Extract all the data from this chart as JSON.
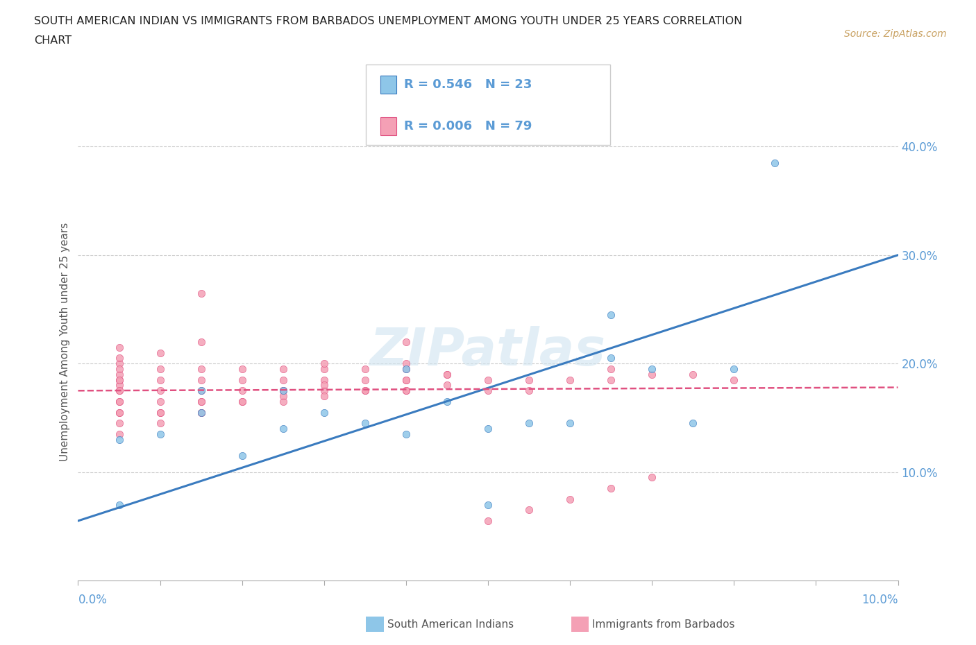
{
  "title_line1": "SOUTH AMERICAN INDIAN VS IMMIGRANTS FROM BARBADOS UNEMPLOYMENT AMONG YOUTH UNDER 25 YEARS CORRELATION",
  "title_line2": "CHART",
  "source_text": "Source: ZipAtlas.com",
  "ylabel": "Unemployment Among Youth under 25 years",
  "xlim": [
    0.0,
    0.1
  ],
  "ylim": [
    0.0,
    0.44
  ],
  "ytick_vals": [
    0.1,
    0.2,
    0.3,
    0.4
  ],
  "ytick_labels": [
    "10.0%",
    "20.0%",
    "30.0%",
    "40.0%"
  ],
  "legend_line1": "R = 0.546   N = 23",
  "legend_line2": "R = 0.006   N = 79",
  "color_blue": "#8ec6e8",
  "color_pink": "#f4a0b5",
  "color_blue_dark": "#3a7bbf",
  "color_pink_dark": "#e05080",
  "color_text": "#555555",
  "color_blue_label": "#5b9bd5",
  "color_source": "#c8a060",
  "watermark": "ZIPatlas",
  "blue_line_x": [
    0.0,
    0.1
  ],
  "blue_line_y": [
    0.055,
    0.3
  ],
  "pink_line_x": [
    0.0,
    0.1
  ],
  "pink_line_y": [
    0.175,
    0.178
  ],
  "blue_x": [
    0.005,
    0.01,
    0.015,
    0.015,
    0.02,
    0.025,
    0.03,
    0.035,
    0.04,
    0.045,
    0.05,
    0.055,
    0.06,
    0.065,
    0.07,
    0.075,
    0.08,
    0.085,
    0.05,
    0.005,
    0.025,
    0.04,
    0.065
  ],
  "blue_y": [
    0.13,
    0.135,
    0.155,
    0.175,
    0.115,
    0.14,
    0.155,
    0.145,
    0.135,
    0.165,
    0.14,
    0.145,
    0.145,
    0.245,
    0.195,
    0.145,
    0.195,
    0.385,
    0.07,
    0.07,
    0.175,
    0.195,
    0.205
  ],
  "pink_x": [
    0.005,
    0.005,
    0.005,
    0.005,
    0.005,
    0.005,
    0.005,
    0.005,
    0.01,
    0.01,
    0.01,
    0.01,
    0.01,
    0.01,
    0.015,
    0.015,
    0.015,
    0.015,
    0.015,
    0.015,
    0.015,
    0.02,
    0.02,
    0.02,
    0.02,
    0.025,
    0.025,
    0.025,
    0.025,
    0.03,
    0.03,
    0.03,
    0.03,
    0.035,
    0.035,
    0.035,
    0.04,
    0.04,
    0.04,
    0.04,
    0.04,
    0.045,
    0.045,
    0.05,
    0.05,
    0.055,
    0.055,
    0.06,
    0.065,
    0.065,
    0.07,
    0.075,
    0.08,
    0.025,
    0.03,
    0.04,
    0.045,
    0.005,
    0.005,
    0.005,
    0.005,
    0.005,
    0.005,
    0.005,
    0.005,
    0.01,
    0.01,
    0.015,
    0.015,
    0.02,
    0.025,
    0.03,
    0.035,
    0.04,
    0.05,
    0.055,
    0.06,
    0.065,
    0.07
  ],
  "pink_y": [
    0.155,
    0.165,
    0.175,
    0.18,
    0.185,
    0.19,
    0.2,
    0.215,
    0.155,
    0.165,
    0.175,
    0.185,
    0.195,
    0.21,
    0.155,
    0.165,
    0.175,
    0.185,
    0.195,
    0.22,
    0.265,
    0.165,
    0.175,
    0.185,
    0.195,
    0.165,
    0.175,
    0.185,
    0.195,
    0.175,
    0.185,
    0.195,
    0.2,
    0.175,
    0.185,
    0.195,
    0.175,
    0.185,
    0.195,
    0.2,
    0.22,
    0.18,
    0.19,
    0.175,
    0.185,
    0.175,
    0.185,
    0.185,
    0.185,
    0.195,
    0.19,
    0.19,
    0.185,
    0.175,
    0.18,
    0.185,
    0.19,
    0.135,
    0.145,
    0.155,
    0.165,
    0.175,
    0.185,
    0.195,
    0.205,
    0.145,
    0.155,
    0.155,
    0.165,
    0.165,
    0.17,
    0.17,
    0.175,
    0.175,
    0.055,
    0.065,
    0.075,
    0.085,
    0.095
  ]
}
